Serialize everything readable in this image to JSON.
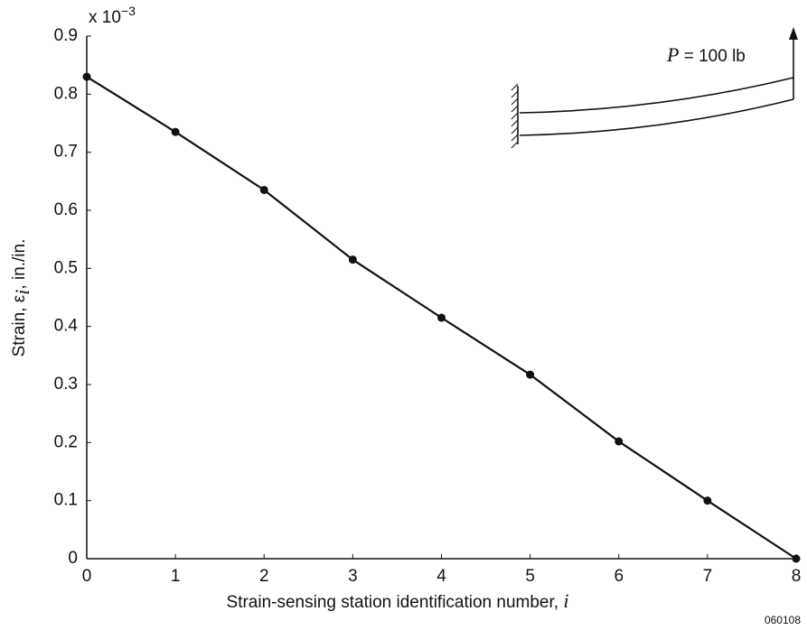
{
  "chart_data": {
    "type": "line",
    "x": [
      0,
      1,
      2,
      3,
      4,
      5,
      6,
      7,
      8
    ],
    "values": [
      0.83,
      0.735,
      0.635,
      0.515,
      0.415,
      0.317,
      0.202,
      0.1,
      0
    ],
    "color": "#111111",
    "xlim": [
      0,
      8
    ],
    "xticks": [
      0,
      1,
      2,
      3,
      4,
      5,
      6,
      7,
      8
    ],
    "ylim": [
      0,
      0.9
    ],
    "yticks": [
      0,
      0.1,
      0.2,
      0.3,
      0.4,
      0.5,
      0.6,
      0.7,
      0.8,
      0.9
    ],
    "y_multiplier": [
      "x 10",
      "−3"
    ],
    "y_label": [
      "Strain, ε",
      "i",
      ", in./in."
    ],
    "x_label": [
      "Strain-sensing station identification number, ",
      "i"
    ],
    "annotation": [
      "P",
      " = 100 lb"
    ],
    "figure_id": "060108"
  }
}
